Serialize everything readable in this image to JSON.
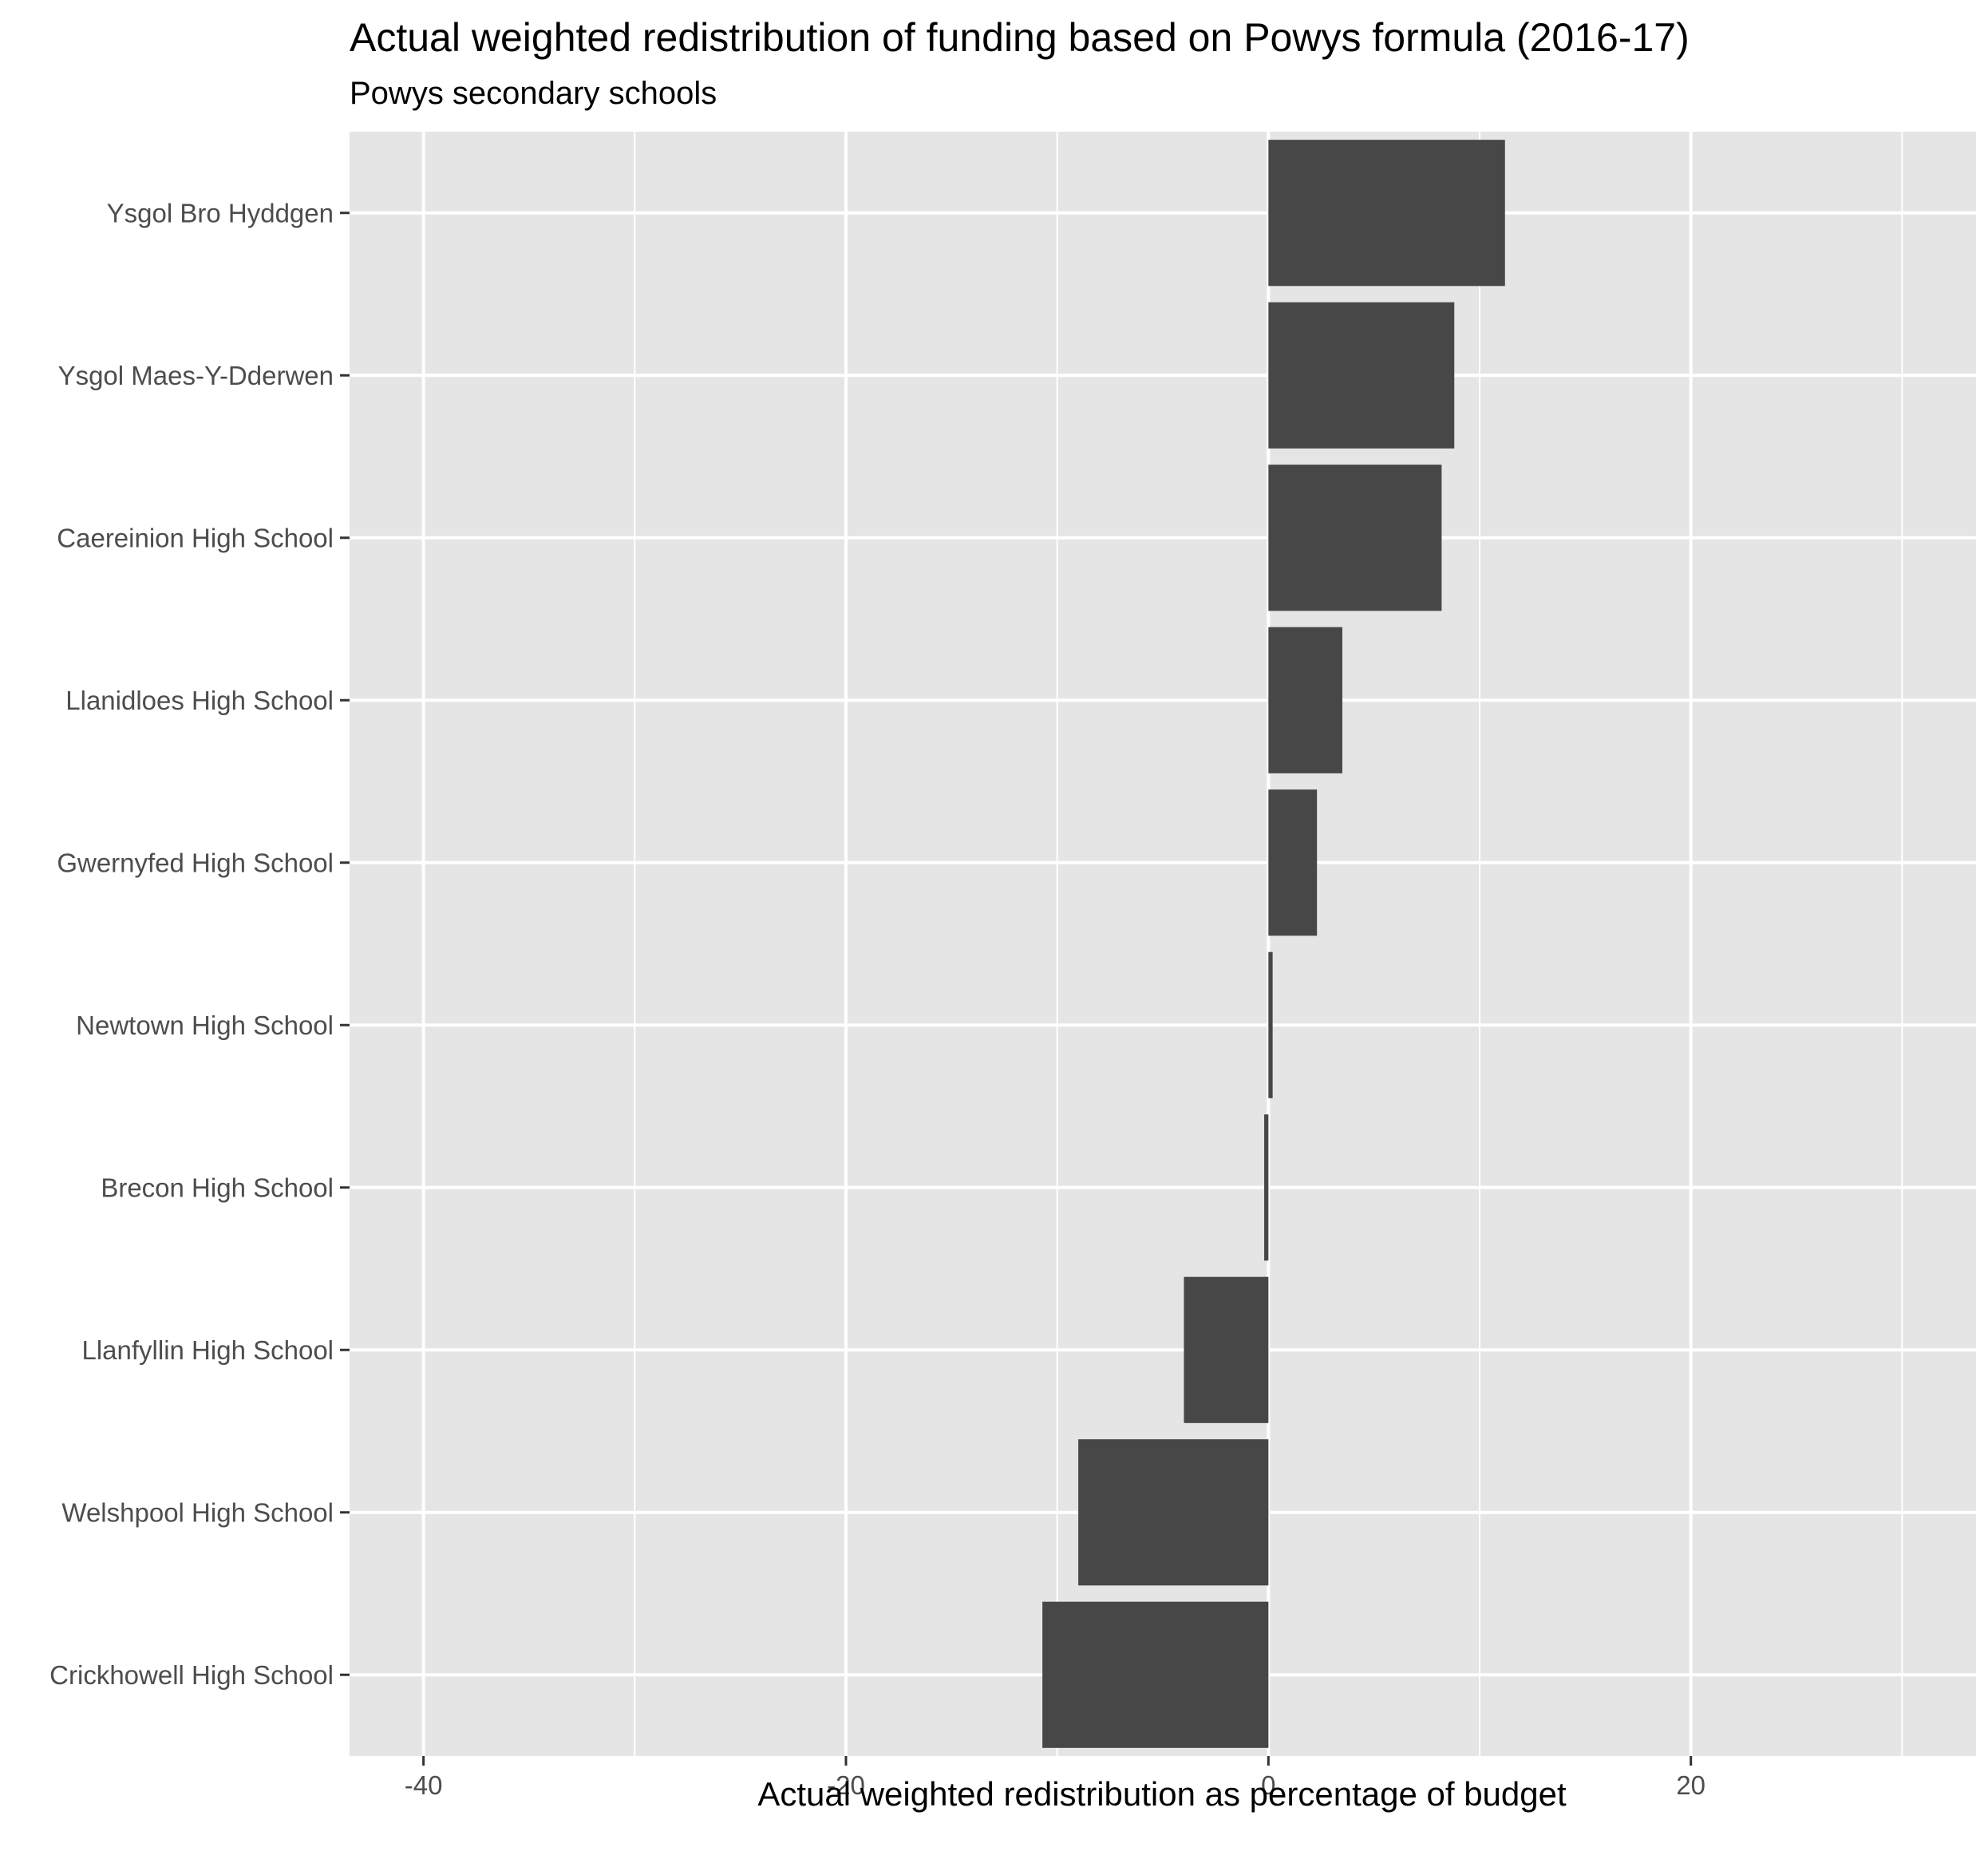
{
  "chart_data": {
    "type": "bar",
    "orientation": "horizontal",
    "title": "Actual weighted redistribution of funding based on Powys formula (2016-17)",
    "subtitle": "Powys secondary schools",
    "xlabel": "Actual weighted redistribution as percentage of budget",
    "ylabel": "",
    "xlim": [
      -43.5,
      33.5
    ],
    "xticks": [
      -40,
      -20,
      0,
      20
    ],
    "xtick_labels": [
      "-40",
      "-20",
      "0",
      "20"
    ],
    "grid": true,
    "categories": [
      "Ysgol Bro Hyddgen",
      "Ysgol Maes-Y-Dderwen",
      "Caereinion High School",
      "Llanidloes High School",
      "Gwernyfed High School",
      "Newtown High School",
      "Brecon High School",
      "Llanfyllin High School",
      "Welshpool High School",
      "Crickhowell High School"
    ],
    "values": [
      11.2,
      8.8,
      8.2,
      3.5,
      2.3,
      0.2,
      -0.2,
      -4.0,
      -9.0,
      -10.7
    ],
    "colors": {
      "bar": "#474747",
      "panel": "#e5e5e5",
      "grid": "#ffffff"
    }
  }
}
